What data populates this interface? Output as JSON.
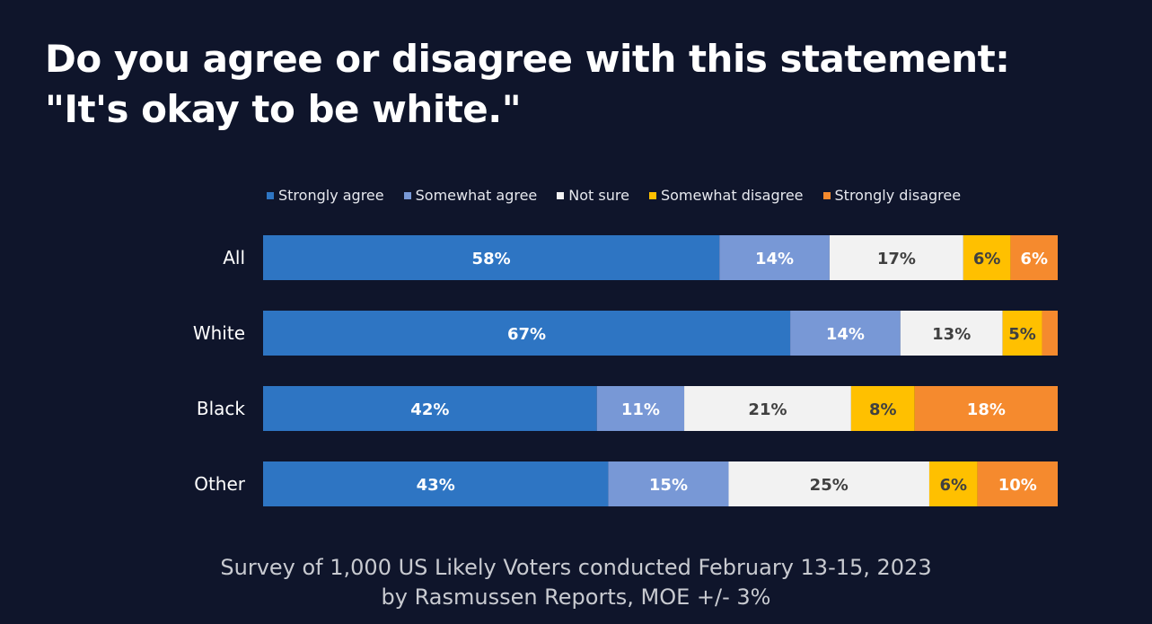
{
  "chart_data": {
    "type": "bar",
    "orientation": "horizontal",
    "stacked": true,
    "title": "Do you agree or disagree with this statement: \"It's okay to be white.\"",
    "title_lines": [
      "Do you agree or disagree with this statement:",
      "\"It's okay to be white.\""
    ],
    "categories": [
      "All",
      "White",
      "Black",
      "Other"
    ],
    "series": [
      {
        "name": "Strongly agree",
        "color": "#2e75c3",
        "values": [
          58,
          67,
          42,
          43
        ],
        "labels": [
          "58%",
          "67%",
          "42%",
          "43%"
        ],
        "label_color": "#ffffff"
      },
      {
        "name": "Somewhat agree",
        "color": "#7898d6",
        "values": [
          14,
          14,
          11,
          15
        ],
        "labels": [
          "14%",
          "14%",
          "11%",
          "15%"
        ],
        "label_color": "#ffffff"
      },
      {
        "name": "Not sure",
        "color": "#f2f2f2",
        "values": [
          17,
          13,
          21,
          25
        ],
        "labels": [
          "17%",
          "13%",
          "21%",
          "25%"
        ],
        "label_color": "#404040"
      },
      {
        "name": "Somewhat disagree",
        "color": "#ffc000",
        "values": [
          6,
          5,
          8,
          6
        ],
        "labels": [
          "6%",
          "5%",
          "8%",
          "6%"
        ],
        "label_color": "#404040"
      },
      {
        "name": "Strongly disagree",
        "color": "#f58a2e",
        "values": [
          6,
          2,
          18,
          10
        ],
        "labels": [
          "6%",
          "",
          "18%",
          "10%"
        ],
        "label_color": "#ffffff"
      }
    ],
    "xlabel": "",
    "ylabel": "",
    "legend_position": "top",
    "grid": false,
    "footer": [
      "Survey of 1,000 US Likely Voters conducted February 13-15, 2023",
      "by Rasmussen Reports, MOE +/- 3%"
    ]
  }
}
